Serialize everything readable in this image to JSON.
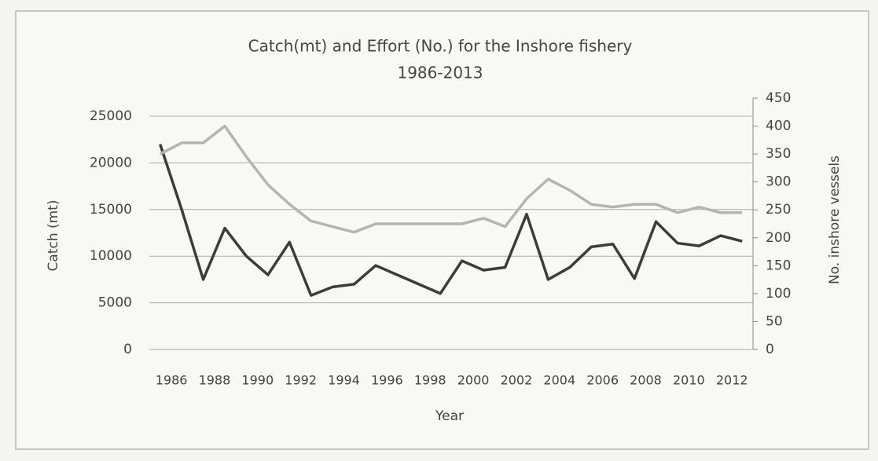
{
  "chart_data": {
    "type": "line",
    "title": "Catch(mt) and Effort (No.) for the Inshore fishery",
    "subtitle": "1986-2013",
    "x_label": "Year",
    "y_label": "Catch (mt)",
    "y2_label": "No. inshore vessels",
    "categories": [
      "1986",
      null,
      "1988",
      null,
      "1990",
      null,
      "1992",
      null,
      "1994",
      null,
      "1996",
      null,
      "1998",
      null,
      "2000",
      null,
      "2002",
      null,
      "2004",
      null,
      "2006",
      null,
      "2008",
      null,
      "2010",
      null,
      "2012",
      null
    ],
    "series": [
      {
        "color": "#3c3c3c",
        "axis": "y",
        "values": [
          22000,
          15000,
          7500,
          13000,
          10000,
          8000,
          11500,
          5800,
          6700,
          7000,
          9000,
          8000,
          7000,
          6000,
          9500,
          8500,
          8800,
          14500,
          7500,
          8800,
          11000,
          11300,
          7600,
          13700,
          11400,
          11100,
          12200,
          11600
        ]
      },
      {
        "color": "#b4b4b4",
        "axis": "y2",
        "values": [
          350,
          370,
          370,
          400,
          345,
          295,
          260,
          230,
          220,
          210,
          225,
          225,
          225,
          225,
          225,
          235,
          220,
          270,
          305,
          285,
          260,
          255,
          260,
          260,
          245,
          255,
          245,
          245
        ]
      }
    ],
    "ylim": [
      0,
      25000
    ],
    "yticks": [
      0,
      5000,
      10000,
      15000,
      20000,
      25000
    ],
    "y2lim": [
      0,
      450
    ],
    "y2ticks": [
      0,
      50,
      100,
      150,
      200,
      250,
      300,
      350,
      400,
      450
    ],
    "grid": true
  }
}
